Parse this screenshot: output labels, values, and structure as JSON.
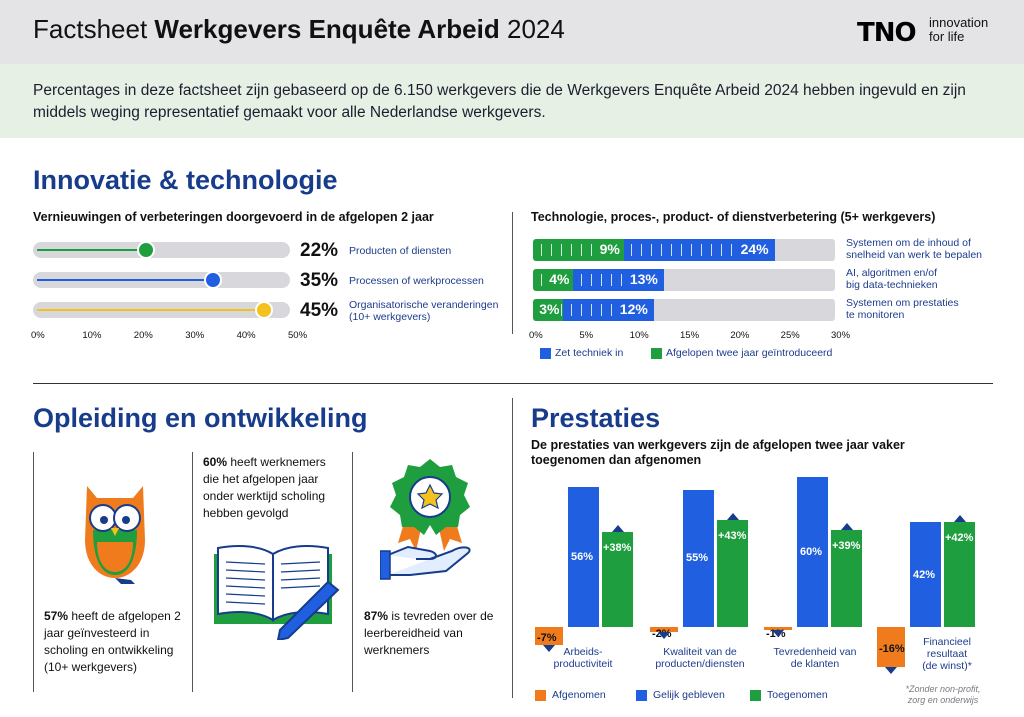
{
  "header": {
    "title_light": "Factsheet",
    "title_bold": "Werkgevers Enquête Arbeid",
    "title_year": "2024",
    "logo": "TNO",
    "tagline_1": "innovation",
    "tagline_2": "for life"
  },
  "intro": {
    "text": "Percentages in deze factsheet zijn gebaseerd op de 6.150 werkgevers die de Werkgevers Enquête Arbeid 2024 hebben ingevuld en zijn middels weging representatief gemaakt voor alle Nederlandse werkgevers."
  },
  "innovation": {
    "title": "Innovatie & technologie",
    "left_subtitle": "Vernieuwingen of verbeteringen doorgevoerd in de afgelopen 2 jaar",
    "right_subtitle": "Technologie, proces-, product- of dienstverbetering (5+ werkgevers)",
    "colors": {
      "green": "#1e9e3e",
      "blue": "#1f5fe0",
      "yellow": "#f3c21e",
      "track": "#d8d8dc"
    }
  },
  "chart_data": [
    {
      "type": "bar",
      "title": "Vernieuwingen of verbeteringen doorgevoerd in de afgelopen 2 jaar",
      "categories": [
        "Producten of diensten",
        "Processen of werkprocessen",
        "Organisatorische veranderingen (10+ werkgevers)"
      ],
      "values": [
        22,
        35,
        45
      ],
      "value_labels": [
        "22%",
        "35%",
        "45%"
      ],
      "label_1": "Producten of diensten",
      "label_2a": "Processen of werkprocessen",
      "label_3a": "Organisatorische veranderingen",
      "label_3b": "(10+ werkgevers)",
      "xlim": [
        0,
        50
      ],
      "xticks": [
        "0%",
        "10%",
        "20%",
        "30%",
        "40%",
        "50%"
      ],
      "colors": [
        "#1e9e3e",
        "#1f5fe0",
        "#f3c21e"
      ]
    },
    {
      "type": "bar",
      "title": "Technologie, proces-, product- of dienstverbetering (5+ werkgevers)",
      "categories": [
        "Systemen om de inhoud of snelheid van werk te bepalen",
        "AI, algoritmen en/of big data-technieken",
        "Systemen om prestaties te monitoren"
      ],
      "category_lines": [
        [
          "Systemen om de inhoud of",
          "snelheid van werk te bepalen"
        ],
        [
          "AI, algoritmen en/of",
          "big data-technieken"
        ],
        [
          "Systemen om prestaties",
          "te monitoren"
        ]
      ],
      "series": [
        {
          "name": "Afgelopen twee jaar geïntroduceerd",
          "values": [
            9,
            4,
            3
          ],
          "labels": [
            "9%",
            "4%",
            "3%"
          ],
          "color": "#1e9e3e"
        },
        {
          "name": "Zet techniek in",
          "values": [
            24,
            13,
            12
          ],
          "labels": [
            "24%",
            "13%",
            "12%"
          ],
          "color": "#1f5fe0"
        }
      ],
      "xlim": [
        0,
        30
      ],
      "xticks": [
        "0%",
        "5%",
        "10%",
        "15%",
        "20%",
        "25%",
        "30%"
      ],
      "legend": [
        "Zet techniek in",
        "Afgelopen twee jaar geïntroduceerd"
      ]
    },
    {
      "type": "bar",
      "title": "De prestaties van werkgevers zijn de afgelopen twee jaar vaker toegenomen dan afgenomen",
      "categories": [
        "Arbeids-productiviteit",
        "Kwaliteit van de producten/diensten",
        "Tevredenheid van de klanten",
        "Financieel resultaat (de winst)*"
      ],
      "series": [
        {
          "name": "Afgenomen",
          "values": [
            -7,
            -2,
            -1,
            -16
          ],
          "labels": [
            "-7%",
            "-2%",
            "-1%",
            "-16%"
          ],
          "color": "#f07b1d"
        },
        {
          "name": "Gelijk gebleven",
          "values": [
            56,
            55,
            60,
            42
          ],
          "labels": [
            "56%",
            "55%",
            "60%",
            "42%"
          ],
          "color": "#1f5fe0"
        },
        {
          "name": "Toegenomen",
          "values": [
            38,
            43,
            39,
            42
          ],
          "labels": [
            "+38%",
            "+43%",
            "+39%",
            "+42%"
          ],
          "color": "#1e9e3e"
        }
      ],
      "legend": [
        "Afgenomen",
        "Gelijk gebleven",
        "Toegenomen"
      ]
    }
  ],
  "training": {
    "title": "Opleiding en ontwikkeling",
    "stat1_value": "57%",
    "stat1_text": "heeft de afgelopen 2 jaar geïnvesteerd in scholing en ontwikkeling (10+ werkgevers)",
    "stat2_value": "60%",
    "stat2_text": "heeft werknemers die het afgelopen jaar onder werktijd scholing hebben gevolgd",
    "stat3_value": "87%",
    "stat3_text": "is tevreden over de leerbereidheid van werknemers"
  },
  "performance": {
    "title": "Prestaties",
    "subtitle": "De prestaties van werkgevers zijn de afgelopen twee jaar vaker toegenomen dan afgenomen",
    "cat1": [
      "Arbeids-",
      "productiviteit"
    ],
    "cat2": [
      "Kwaliteit van de",
      "producten/diensten"
    ],
    "cat3": [
      "Tevredenheid van",
      "de klanten"
    ],
    "cat4": [
      "Financieel",
      "resultaat",
      "(de winst)*"
    ],
    "note": [
      "*Zonder non-profit,",
      "zorg en onderwijs"
    ],
    "legend_dec": "Afgenomen",
    "legend_same": "Gelijk gebleven",
    "legend_inc": "Toegenomen",
    "colors": {
      "orange": "#f07b1d",
      "blue": "#1f5fe0",
      "green": "#1e9e3e",
      "navy": "#173c8c"
    }
  }
}
